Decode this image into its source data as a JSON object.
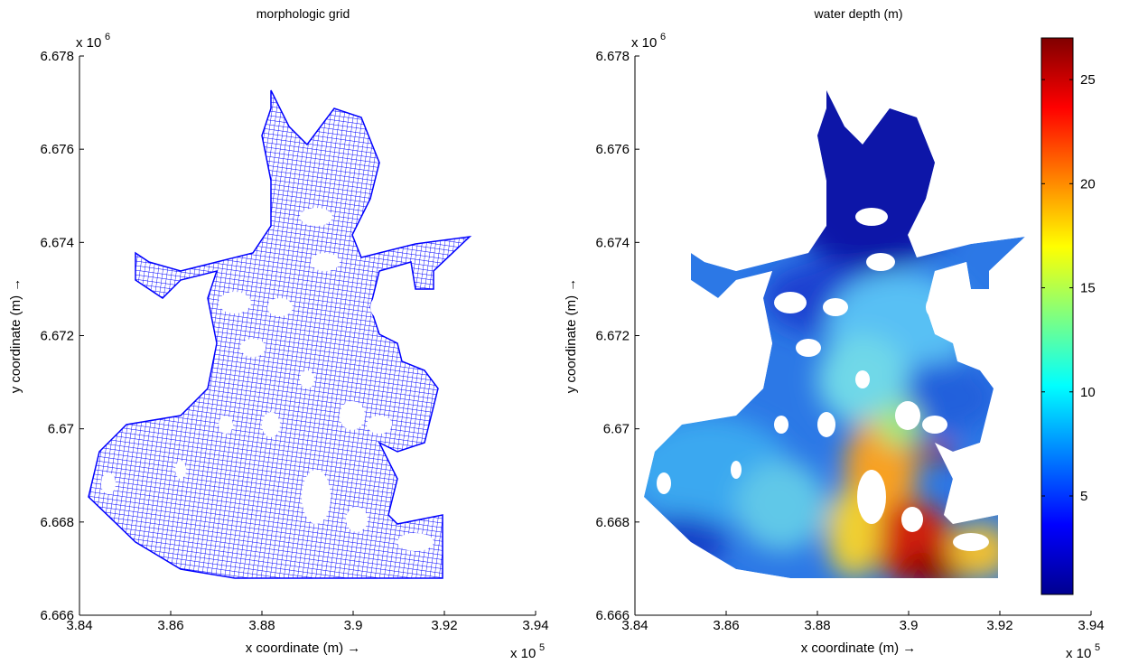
{
  "chart_data": [
    {
      "type": "mesh",
      "title": "morphologic grid",
      "x_label": "x coordinate (m) →",
      "y_label": "y coordinate (m) →",
      "xlim": [
        3.84,
        3.94
      ],
      "ylim": [
        6.666,
        6.678
      ],
      "xticks": [
        3.84,
        3.86,
        3.88,
        3.9,
        3.92,
        3.94
      ],
      "yticks": [
        6.666,
        6.668,
        6.67,
        6.672,
        6.674,
        6.676,
        6.678
      ],
      "x_scale": {
        "base": "x 10",
        "power": 5
      },
      "y_scale": {
        "base": "x 10",
        "power": 6
      },
      "color": "#0000ff"
    },
    {
      "type": "field",
      "title": "water depth (m)",
      "x_label": "x coordinate (m) →",
      "y_label": "y coordinate (m) →",
      "xlim": [
        3.84,
        3.94
      ],
      "ylim": [
        6.666,
        6.678
      ],
      "xticks": [
        3.84,
        3.86,
        3.88,
        3.9,
        3.92,
        3.94
      ],
      "yticks": [
        6.666,
        6.668,
        6.67,
        6.672,
        6.674,
        6.676,
        6.678
      ],
      "x_scale": {
        "base": "x 10",
        "power": 5
      },
      "y_scale": {
        "base": "x 10",
        "power": 6
      },
      "colorbar": {
        "lim": [
          0.27,
          27.0
        ],
        "ticks": [
          5,
          10,
          15,
          20,
          25
        ],
        "colormap": "jet"
      }
    }
  ]
}
